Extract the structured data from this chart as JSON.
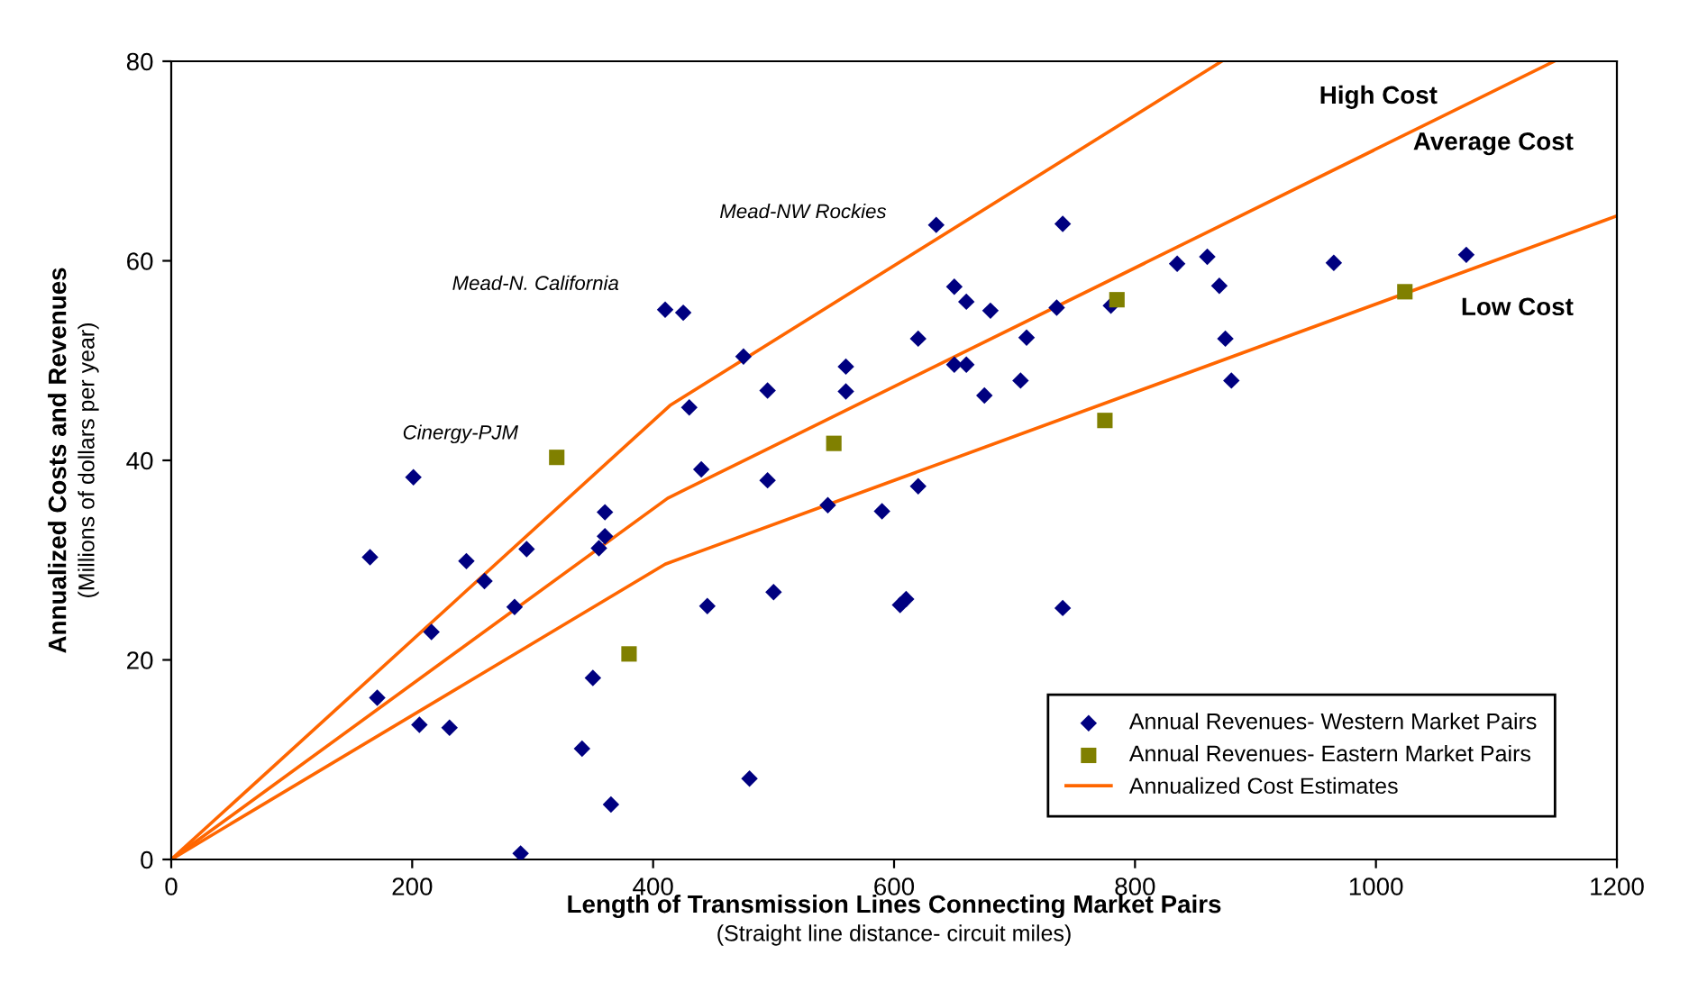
{
  "chart_data": {
    "type": "scatter",
    "xlabel": "Length of Transmission Lines Connecting Market Pairs\n(Straight line distance- circuit miles)",
    "ylabel": "Annualized Costs and Revenues\n(Millions of dollars per year)",
    "xlim": [
      0,
      1200
    ],
    "ylim": [
      0,
      80
    ],
    "xticks": [
      0,
      200,
      400,
      600,
      800,
      1000,
      1200
    ],
    "yticks": [
      0,
      20,
      40,
      60,
      80
    ],
    "grid": false,
    "legend": "bottom right",
    "series": [
      {
        "name": "Annual Revenues- Western Market Pairs",
        "marker": "diamond",
        "color": "#000080",
        "x": [
          165,
          201,
          171,
          206,
          216,
          231,
          245,
          260,
          285,
          295,
          290,
          341,
          350,
          355,
          360,
          360,
          365,
          410,
          425,
          430,
          440,
          445,
          475,
          480,
          495,
          495,
          500,
          545,
          560,
          560,
          590,
          605,
          610,
          620,
          620,
          635,
          650,
          650,
          660,
          660,
          675,
          680,
          705,
          710,
          735,
          740,
          740,
          780,
          835,
          860,
          870,
          875,
          880,
          965,
          1075
        ],
        "values": [
          30.3,
          38.3,
          16.2,
          13.5,
          22.8,
          13.2,
          29.9,
          27.9,
          25.3,
          31.1,
          0.6,
          11.1,
          18.2,
          31.2,
          32.4,
          34.8,
          5.5,
          55.1,
          54.8,
          45.3,
          39.1,
          25.4,
          50.4,
          8.1,
          47.0,
          38.0,
          26.8,
          35.5,
          49.4,
          46.9,
          34.9,
          25.5,
          26.1,
          52.2,
          37.4,
          63.6,
          57.4,
          49.6,
          55.9,
          49.6,
          46.5,
          55.0,
          48.0,
          52.3,
          55.3,
          63.7,
          25.2,
          55.5,
          59.7,
          60.4,
          57.5,
          52.2,
          48.0,
          59.8,
          60.6
        ]
      },
      {
        "name": "Annual Revenues- Eastern Market Pairs",
        "marker": "square",
        "color": "#808000",
        "x": [
          320,
          380,
          550,
          775,
          785,
          1024
        ],
        "values": [
          40.3,
          20.6,
          41.7,
          44.0,
          56.1,
          56.9
        ]
      },
      {
        "name": "Annualized Cost Estimates",
        "type": "line",
        "marker": "none",
        "color": "#ff6600",
        "x": [
          0,
          414,
          872
        ],
        "values": [
          0,
          45.5,
          80
        ]
      },
      {
        "type": "line",
        "marker": "none",
        "color": "#ff6600",
        "x": [
          0,
          412,
          1148
        ],
        "values": [
          0,
          36.2,
          80
        ]
      },
      {
        "type": "line",
        "marker": "none",
        "color": "#ff6600",
        "x": [
          0,
          410,
          1200
        ],
        "values": [
          0,
          29.6,
          64.5
        ]
      }
    ],
    "annotations": [
      "High Cost",
      "Average Cost",
      "Low Cost",
      "Mead-NW Rockies",
      "Mead-N. California",
      "Cinergy-PJM"
    ]
  }
}
